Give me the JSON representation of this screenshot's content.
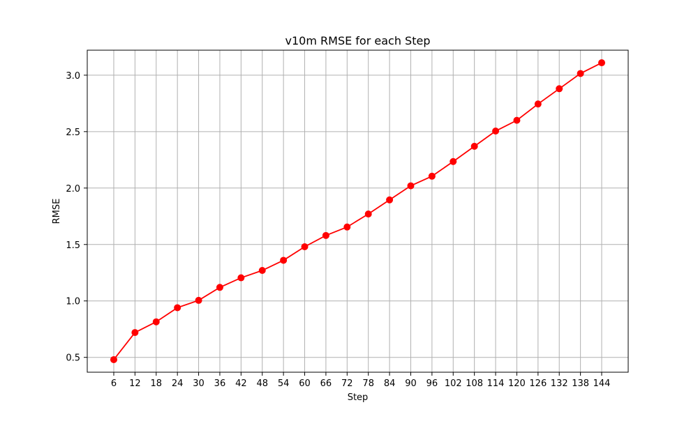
{
  "chart_data": {
    "type": "line",
    "title": "v10m RMSE for each Step",
    "xlabel": "Step",
    "ylabel": "RMSE",
    "x": [
      6,
      12,
      18,
      24,
      30,
      36,
      42,
      48,
      54,
      60,
      66,
      72,
      78,
      84,
      90,
      96,
      102,
      108,
      114,
      120,
      126,
      132,
      138,
      144
    ],
    "series": [
      {
        "values": [
          0.48,
          0.72,
          0.815,
          0.94,
          1.005,
          1.12,
          1.205,
          1.27,
          1.36,
          1.48,
          1.58,
          1.655,
          1.77,
          1.895,
          2.02,
          2.105,
          2.235,
          2.37,
          2.505,
          2.6,
          2.745,
          2.88,
          3.015,
          3.11
        ],
        "color": "#ff0000",
        "marker": "circle"
      }
    ],
    "xticks": [
      6,
      12,
      18,
      24,
      30,
      36,
      42,
      48,
      54,
      60,
      66,
      72,
      78,
      84,
      90,
      96,
      102,
      108,
      114,
      120,
      126,
      132,
      138,
      144
    ],
    "yticks": [
      0.5,
      1.0,
      1.5,
      2.0,
      2.5,
      3.0
    ],
    "ytick_labels": [
      "0.5",
      "1.0",
      "1.5",
      "2.0",
      "2.5",
      "3.0"
    ],
    "xlim": [
      -1.5,
      151.5
    ],
    "ylim": [
      0.3685,
      3.2215
    ],
    "grid": true,
    "grid_color": "#b0b0b0"
  }
}
